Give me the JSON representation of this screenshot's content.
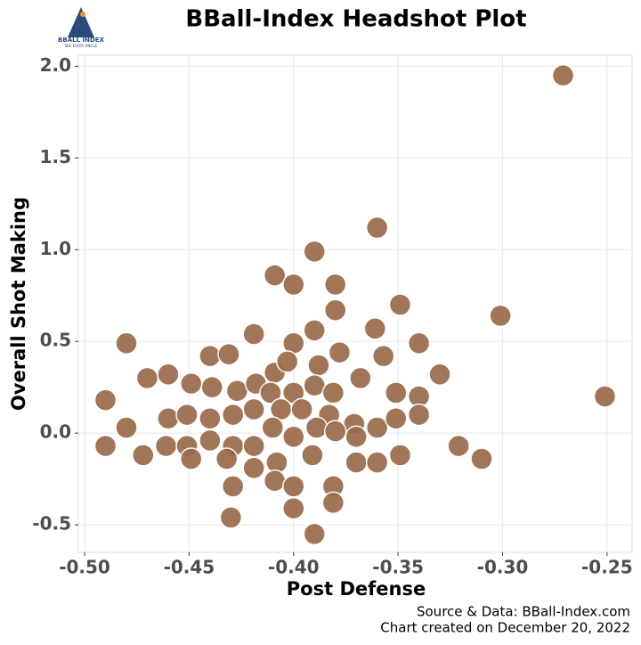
{
  "chart_data": {
    "type": "scatter",
    "title": "BBall-Index Headshot Plot",
    "logo_title": "BBALL INDEX",
    "logo_tagline": "SEE EVERY ANGLE",
    "x_label": "Post Defense",
    "y_label": "Overall Shot Making",
    "source": "Source & Data: BBall-Index.com",
    "created": "Chart created on December 20, 2022",
    "color": "#9a6a4a",
    "grid": true,
    "xlim": [
      -0.503,
      -0.238
    ],
    "ylim": [
      -0.65,
      2.06
    ],
    "xticks": [
      {
        "value": -0.5,
        "label": "-0.50"
      },
      {
        "value": -0.45,
        "label": "-0.45"
      },
      {
        "value": -0.4,
        "label": "-0.40"
      },
      {
        "value": -0.35,
        "label": "-0.35"
      },
      {
        "value": -0.3,
        "label": "-0.30"
      },
      {
        "value": -0.25,
        "label": "-0.25"
      }
    ],
    "yticks": [
      {
        "value": -0.5,
        "label": "-0.5"
      },
      {
        "value": 0,
        "label": "0.0"
      },
      {
        "value": 0.5,
        "label": "0.5"
      },
      {
        "value": 1,
        "label": "1.0"
      },
      {
        "value": 1.5,
        "label": "1.5"
      },
      {
        "value": 2,
        "label": "2.0"
      }
    ],
    "x": [
      -0.271,
      -0.36,
      -0.39,
      -0.409,
      -0.4,
      -0.38,
      -0.349,
      -0.301,
      -0.38,
      -0.48,
      -0.39,
      -0.419,
      -0.361,
      -0.34,
      -0.44,
      -0.431,
      -0.4,
      -0.378,
      -0.357,
      -0.33,
      -0.251,
      -0.49,
      -0.47,
      -0.46,
      -0.449,
      -0.439,
      -0.427,
      -0.418,
      -0.409,
      -0.403,
      -0.388,
      -0.411,
      -0.4,
      -0.39,
      -0.381,
      -0.368,
      -0.351,
      -0.34,
      -0.48,
      -0.49,
      -0.46,
      -0.451,
      -0.44,
      -0.429,
      -0.419,
      -0.406,
      -0.396,
      -0.383,
      -0.371,
      -0.36,
      -0.351,
      -0.34,
      -0.461,
      -0.451,
      -0.44,
      -0.429,
      -0.419,
      -0.41,
      -0.4,
      -0.389,
      -0.38,
      -0.37,
      -0.321,
      -0.31,
      -0.472,
      -0.449,
      -0.432,
      -0.419,
      -0.408,
      -0.391,
      -0.37,
      -0.36,
      -0.349,
      -0.429,
      -0.409,
      -0.4,
      -0.381,
      -0.43,
      -0.4,
      -0.39,
      -0.381
    ],
    "y": [
      1.95,
      1.12,
      0.99,
      0.86,
      0.81,
      0.81,
      0.7,
      0.64,
      0.67,
      0.49,
      0.56,
      0.54,
      0.57,
      0.49,
      0.42,
      0.43,
      0.49,
      0.44,
      0.42,
      0.32,
      0.2,
      0.18,
      0.3,
      0.32,
      0.27,
      0.25,
      0.23,
      0.27,
      0.33,
      0.39,
      0.37,
      0.22,
      0.22,
      0.26,
      0.22,
      0.3,
      0.22,
      0.2,
      0.03,
      -0.07,
      0.08,
      0.1,
      0.08,
      0.1,
      0.13,
      0.13,
      0.13,
      0.1,
      0.05,
      0.03,
      0.08,
      0.1,
      -0.07,
      -0.07,
      -0.04,
      -0.07,
      -0.07,
      0.03,
      -0.02,
      0.03,
      0.01,
      -0.02,
      -0.07,
      -0.14,
      -0.12,
      -0.14,
      -0.14,
      -0.19,
      -0.16,
      -0.12,
      -0.16,
      -0.16,
      -0.12,
      -0.29,
      -0.26,
      -0.29,
      -0.29,
      -0.46,
      -0.41,
      -0.55,
      -0.38
    ]
  }
}
